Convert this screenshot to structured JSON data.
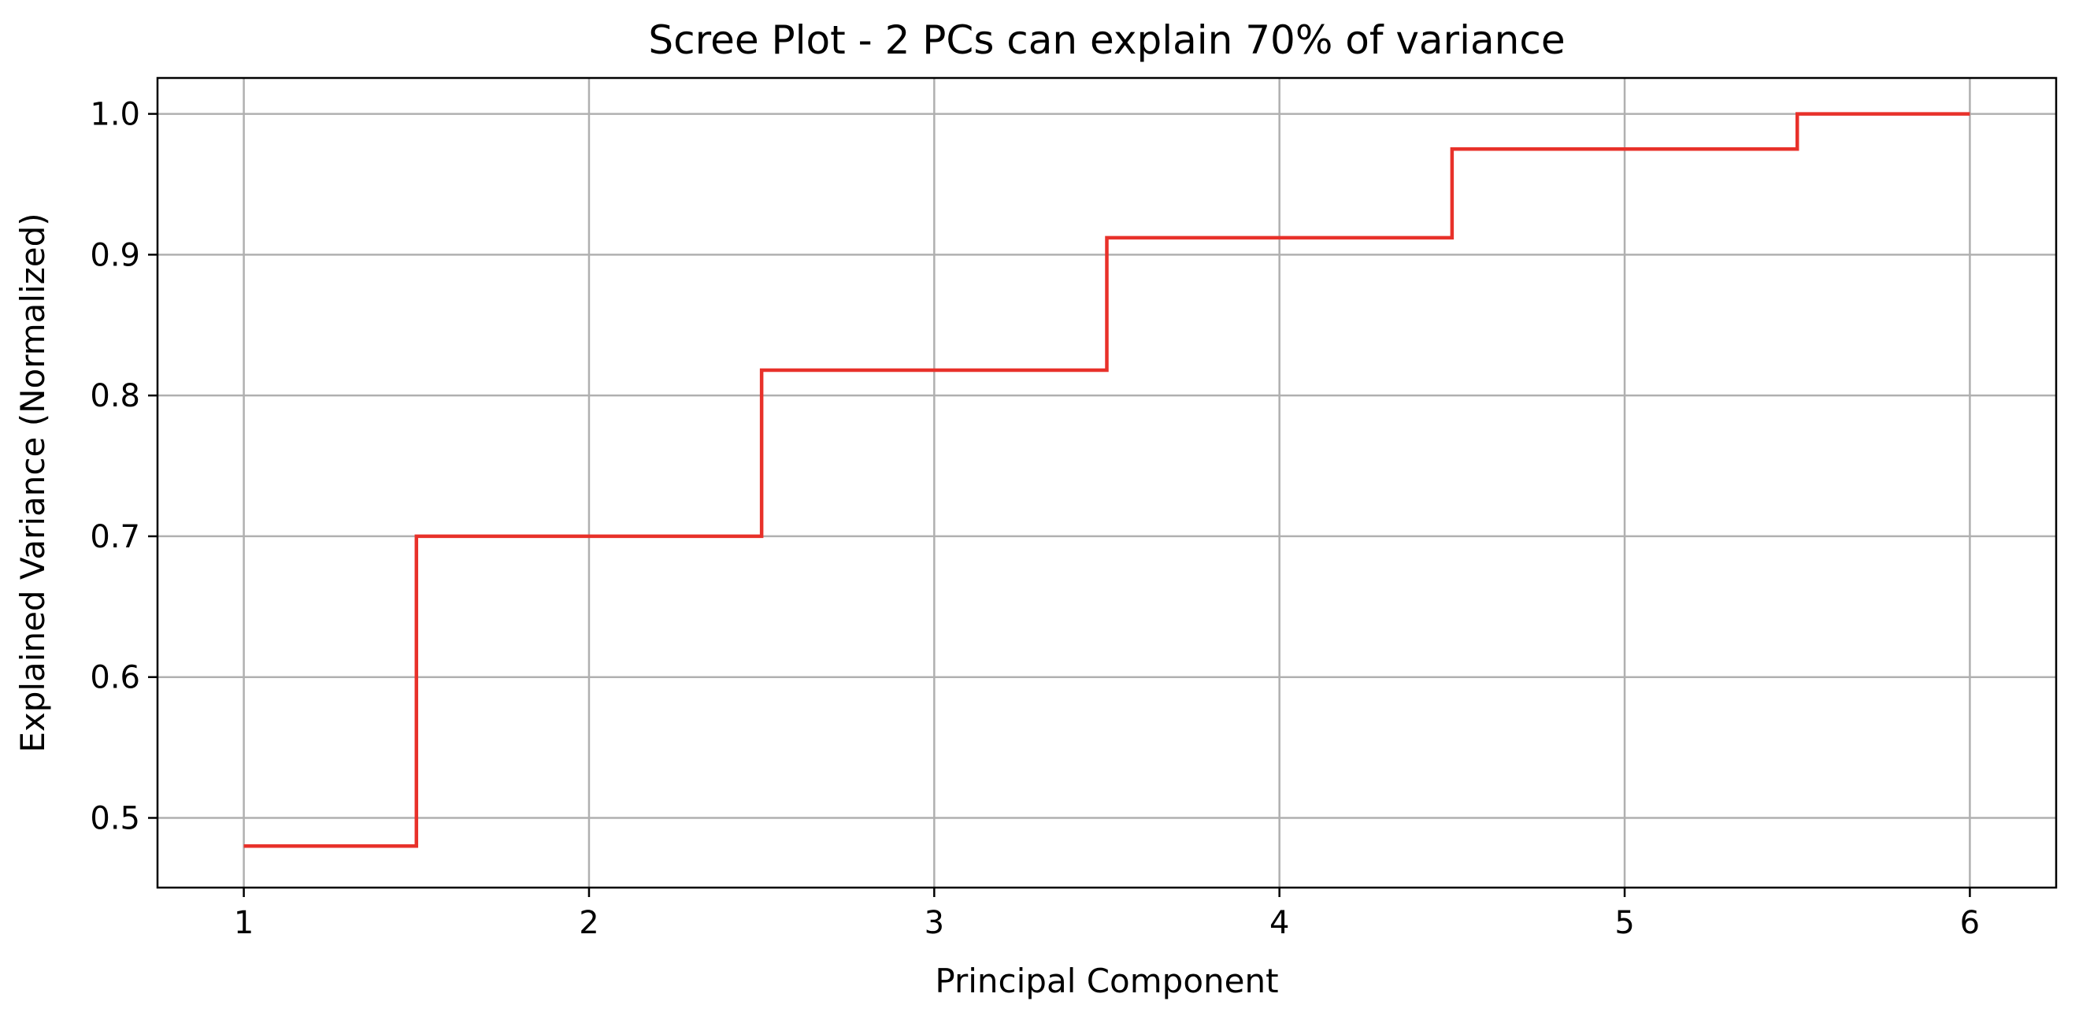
{
  "chart_data": {
    "type": "line",
    "drawstyle": "steps-mid",
    "title": "Scree Plot - 2 PCs can explain 70% of variance",
    "xlabel": "Principal Component",
    "ylabel": "Explained Variance (Normalized)",
    "x": [
      1,
      2,
      3,
      4,
      5,
      6
    ],
    "x_ticks": [
      "1",
      "2",
      "3",
      "4",
      "5",
      "6"
    ],
    "y_ticks": [
      "0.5",
      "0.6",
      "0.7",
      "0.8",
      "0.9",
      "1.0"
    ],
    "xlim": [
      0.75,
      6.25
    ],
    "ylim": [
      0.4505,
      1.0255
    ],
    "grid": true,
    "series": [
      {
        "values": [
          0.48,
          0.7,
          0.818,
          0.912,
          0.975,
          1.0
        ],
        "color": "#e8312a"
      }
    ]
  }
}
